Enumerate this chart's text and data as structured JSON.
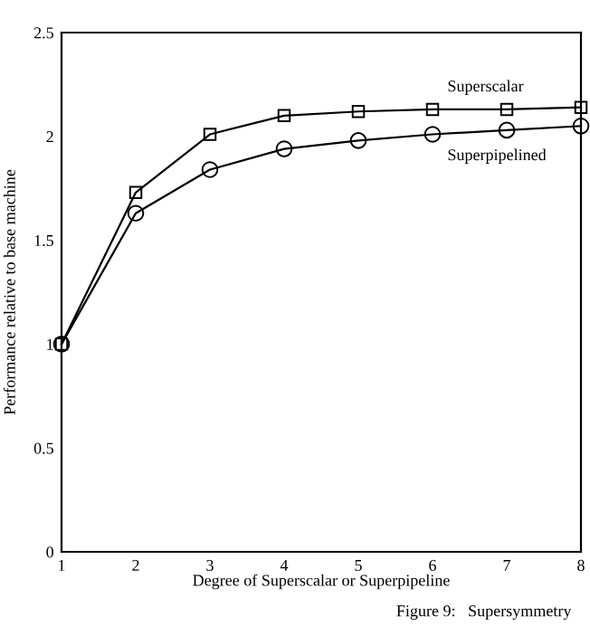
{
  "chart_data": {
    "type": "line",
    "xlabel": "Degree of Superscalar or Superpipeline",
    "ylabel": "Performance relative to base machine",
    "x": [
      1,
      2,
      3,
      4,
      5,
      6,
      7,
      8
    ],
    "series": [
      {
        "name": "Superscalar",
        "color": "#000000",
        "marker": "square",
        "values": [
          1.0,
          1.73,
          2.01,
          2.1,
          2.12,
          2.13,
          2.13,
          2.14
        ]
      },
      {
        "name": "Superpipelined",
        "color": "#000000",
        "marker": "circle",
        "values": [
          1.0,
          1.63,
          1.84,
          1.94,
          1.98,
          2.01,
          2.03,
          2.05
        ]
      }
    ],
    "xlim": [
      1,
      8
    ],
    "ylim": [
      0,
      2.5
    ],
    "xticks": [
      1,
      2,
      3,
      4,
      5,
      6,
      7,
      8
    ],
    "yticks": [
      0,
      0.5,
      1,
      1.5,
      2,
      2.5
    ],
    "grid": false,
    "legend": false,
    "line_style": "solid",
    "annotations": [
      "Figure 9:   Supersymmetry"
    ]
  }
}
